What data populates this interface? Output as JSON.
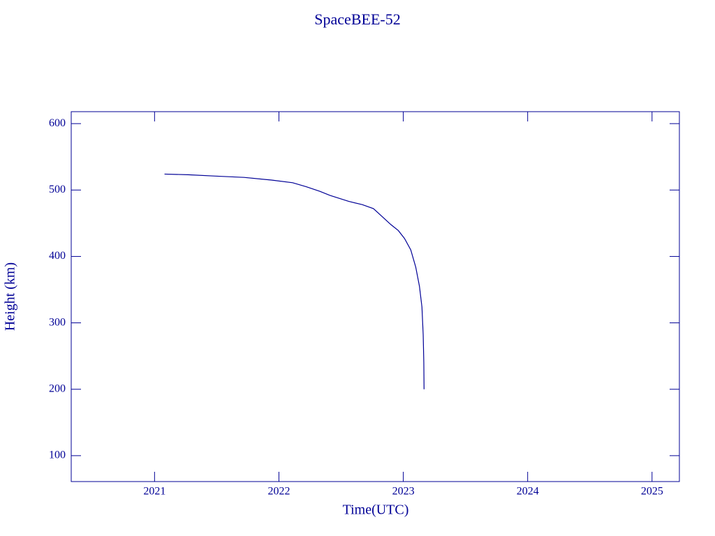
{
  "chart_data": {
    "type": "line",
    "title": "SpaceBEE-52",
    "x_label": "Time(UTC)",
    "y_label": "Height (km)",
    "color": "#000096",
    "x": [
      2021.08,
      2021.27,
      2021.49,
      2021.72,
      2021.94,
      2022.11,
      2022.22,
      2022.33,
      2022.41,
      2022.56,
      2022.67,
      2022.76,
      2022.83,
      2022.9,
      2022.96,
      2023.01,
      2023.06,
      2023.1,
      2023.13,
      2023.15,
      2023.16,
      2023.165,
      2023.167
    ],
    "values": [
      524,
      523,
      521,
      519,
      515,
      511,
      505,
      498,
      492,
      483,
      478,
      472,
      460,
      448,
      439,
      427,
      410,
      384,
      355,
      324,
      282,
      240,
      200
    ],
    "xlim": [
      2020.33,
      2025.22
    ],
    "ylim": [
      61,
      618
    ],
    "xticks": [
      2021,
      2022,
      2023,
      2024,
      2025
    ],
    "yticks": [
      100,
      200,
      300,
      400,
      500,
      600
    ]
  }
}
